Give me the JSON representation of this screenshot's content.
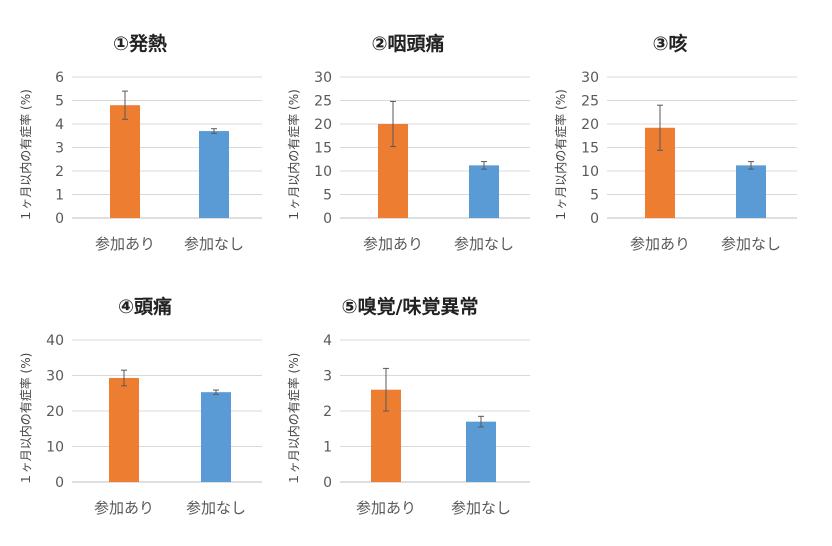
{
  "colors": {
    "orange": "#ED7D31",
    "blue": "#5B9BD5",
    "grid": "#D9D9D9",
    "error_bar": "#595959"
  },
  "chart_data": [
    {
      "type": "bar",
      "title": "①発熱",
      "ylabel": "１ヶ月以内の有症率 (%)",
      "categories": [
        "参加あり",
        "参加なし"
      ],
      "values": [
        4.8,
        3.7
      ],
      "errors": [
        0.6,
        0.1
      ],
      "ylim": [
        0,
        6
      ],
      "yticks": [
        "0",
        "1",
        "2",
        "3",
        "4",
        "5",
        "6"
      ],
      "grid": true,
      "bar_colors": [
        "#ED7D31",
        "#5B9BD5"
      ]
    },
    {
      "type": "bar",
      "title": "②咽頭痛",
      "ylabel": "１ヶ月以内の有症率 (%)",
      "categories": [
        "参加あり",
        "参加なし"
      ],
      "values": [
        20,
        11.2
      ],
      "errors": [
        4.8,
        0.8
      ],
      "ylim": [
        0,
        30
      ],
      "yticks": [
        "0",
        "5",
        "10",
        "15",
        "20",
        "25",
        "30"
      ],
      "grid": true,
      "bar_colors": [
        "#ED7D31",
        "#5B9BD5"
      ]
    },
    {
      "type": "bar",
      "title": "③咳",
      "ylabel": "１ヶ月以内の有症率 (%)",
      "categories": [
        "参加あり",
        "参加なし"
      ],
      "values": [
        19.2,
        11.2
      ],
      "errors": [
        4.8,
        0.8
      ],
      "ylim": [
        0,
        30
      ],
      "yticks": [
        "0",
        "5",
        "10",
        "15",
        "20",
        "25",
        "30"
      ],
      "grid": true,
      "bar_colors": [
        "#ED7D31",
        "#5B9BD5"
      ]
    },
    {
      "type": "bar",
      "title": "④頭痛",
      "ylabel": "１ヶ月以内の有症率 (%)",
      "categories": [
        "参加あり",
        "参加なし"
      ],
      "values": [
        29.3,
        25.3
      ],
      "errors": [
        2.2,
        0.6
      ],
      "ylim": [
        0,
        40
      ],
      "yticks": [
        "0",
        "10",
        "20",
        "30",
        "40"
      ],
      "grid": true,
      "bar_colors": [
        "#ED7D31",
        "#5B9BD5"
      ]
    },
    {
      "type": "bar",
      "title": "⑤嗅覚/味覚異常",
      "ylabel": "１ヶ月以内の有症率 (%)",
      "categories": [
        "参加あり",
        "参加なし"
      ],
      "values": [
        2.6,
        1.7
      ],
      "errors": [
        0.6,
        0.15
      ],
      "ylim": [
        0,
        4
      ],
      "yticks": [
        "0",
        "1",
        "2",
        "3",
        "4"
      ],
      "grid": true,
      "bar_colors": [
        "#ED7D31",
        "#5B9BD5"
      ]
    }
  ]
}
